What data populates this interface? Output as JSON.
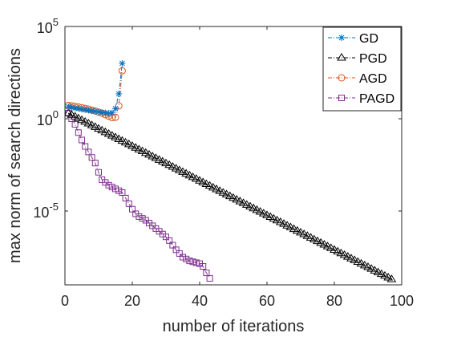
{
  "chart_data": {
    "type": "line",
    "xlabel": "number of iterations",
    "ylabel": "max norm of search directions",
    "xlim": [
      0,
      100
    ],
    "ylim_log10": [
      -9,
      5
    ],
    "yscale": "log",
    "grid": false,
    "legend_position": "top-right",
    "x_ticks": [
      {
        "value": 0,
        "label": "0"
      },
      {
        "value": 20,
        "label": "20"
      },
      {
        "value": 40,
        "label": "40"
      },
      {
        "value": 60,
        "label": "60"
      },
      {
        "value": 80,
        "label": "80"
      },
      {
        "value": 100,
        "label": "100"
      }
    ],
    "y_ticks": [
      {
        "value": 5,
        "base": "10",
        "exp": "5"
      },
      {
        "value": 0,
        "base": "10",
        "exp": "0"
      },
      {
        "value": -5,
        "base": "10",
        "exp": "-5"
      }
    ],
    "series": [
      {
        "name": "GD",
        "color": "#0072BD",
        "marker": "asterisk",
        "x": [
          1,
          2,
          3,
          4,
          5,
          6,
          7,
          8,
          9,
          10,
          11,
          12,
          13,
          14,
          15,
          16,
          17
        ],
        "log10_y": [
          0.65,
          0.62,
          0.58,
          0.55,
          0.52,
          0.49,
          0.46,
          0.43,
          0.4,
          0.37,
          0.34,
          0.32,
          0.3,
          0.32,
          0.55,
          1.35,
          3.0
        ]
      },
      {
        "name": "PGD",
        "color": "#000000",
        "marker": "triangle",
        "x_start": 1,
        "x_end": 97,
        "log10_y_start": 0.3,
        "log10_y_end": -8.7
      },
      {
        "name": "AGD",
        "color": "#D95319",
        "marker": "circle",
        "x": [
          1,
          2,
          3,
          4,
          5,
          6,
          7,
          8,
          9,
          10,
          11,
          12,
          13,
          14,
          15,
          16,
          17
        ],
        "log10_y": [
          0.72,
          0.7,
          0.67,
          0.64,
          0.6,
          0.56,
          0.52,
          0.47,
          0.42,
          0.36,
          0.3,
          0.22,
          0.14,
          0.06,
          0.08,
          0.7,
          2.6
        ]
      },
      {
        "name": "PAGD",
        "color": "#7E2F8E",
        "marker": "square",
        "x": [
          1,
          2,
          3,
          4,
          5,
          6,
          7,
          8,
          9,
          10,
          11,
          12,
          13,
          14,
          15,
          16,
          17,
          18,
          19,
          20,
          21,
          22,
          23,
          24,
          25,
          26,
          27,
          28,
          29,
          30,
          31,
          32,
          33,
          34,
          35,
          36,
          37,
          38,
          39,
          40,
          41,
          42,
          43
        ],
        "log10_y": [
          0.3,
          0.0,
          -0.3,
          -0.75,
          -1.15,
          -1.5,
          -1.8,
          -2.1,
          -2.4,
          -2.9,
          -3.3,
          -3.45,
          -3.6,
          -3.7,
          -3.8,
          -3.9,
          -4.0,
          -4.3,
          -4.6,
          -4.9,
          -5.15,
          -5.3,
          -5.4,
          -5.5,
          -5.65,
          -5.8,
          -5.95,
          -6.1,
          -6.25,
          -6.4,
          -6.6,
          -6.85,
          -7.1,
          -7.3,
          -7.5,
          -7.6,
          -7.7,
          -7.75,
          -7.8,
          -7.85,
          -8.0,
          -8.35,
          -8.65
        ]
      }
    ]
  }
}
